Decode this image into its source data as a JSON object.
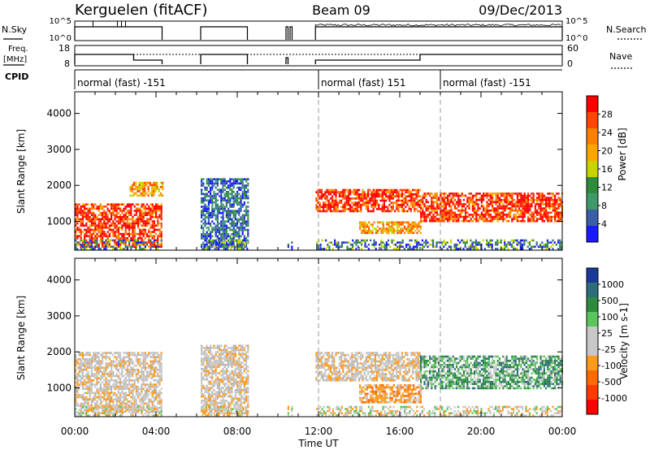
{
  "header": {
    "station": "Kerguelen (fitACF)",
    "beam": "Beam 09",
    "date": "09/Dec/2013"
  },
  "status": {
    "nsky_label": "N.Sky",
    "nsearch_label": "N.Search",
    "freq_label_1": "Freq.",
    "freq_label_2": "[MHz]",
    "nave_label": "Nave",
    "cpid_label": "CPID",
    "left_ticks": [
      "10^5",
      "10^0"
    ],
    "right_ticks": [
      "10^5",
      "10^0"
    ],
    "freq_ticks": [
      "18",
      "8"
    ],
    "nave_ticks": [
      "60",
      "0"
    ],
    "cpid_segments": [
      {
        "label": "normal (fast) -151",
        "start": 0,
        "end": 12
      },
      {
        "label": "normal (fast) 151",
        "start": 12,
        "end": 18
      },
      {
        "label": "normal (fast) -151",
        "start": 18,
        "end": 24
      }
    ],
    "data_windows": [
      [
        0,
        4.3
      ],
      [
        6.2,
        8.5
      ],
      [
        10.4,
        10.5
      ],
      [
        10.6,
        10.7
      ],
      [
        11.85,
        24
      ]
    ]
  },
  "panels": {
    "power": {
      "ylabel": "Slant Range [km]",
      "cbar_title": "Power [dB]",
      "cbar_ticks": [
        "28",
        "24",
        "20",
        "16",
        "12",
        "8",
        "4"
      ],
      "cbar_colors": [
        "#ff0000",
        "#ff4500",
        "#ff8000",
        "#ffa500",
        "#c8d400",
        "#2e8b3e",
        "#3f9a6a",
        "#3a5fa8",
        "#1a1aff"
      ]
    },
    "velocity": {
      "ylabel": "Slant Range [km]",
      "cbar_title": "Velocity [m s-1]",
      "cbar_ticks": [
        "1000",
        "500",
        "100",
        "25",
        "-25",
        "-100",
        "-500",
        "-1000"
      ],
      "cbar_colors": [
        "#1a3a9a",
        "#2e6e7a",
        "#2e8b3e",
        "#5cc45c",
        "#c8c8c8",
        "#c8c8c8",
        "#ff9a1a",
        "#ff6a00",
        "#ff3a00",
        "#ff0000"
      ]
    }
  },
  "xaxis": {
    "label": "Time UT",
    "ticks": [
      "00:00",
      "04:00",
      "08:00",
      "12:00",
      "16:00",
      "20:00",
      "00:00"
    ]
  },
  "chart_data": [
    {
      "type": "heatmap",
      "title": "Kerguelen (fitACF) Beam 09 09/Dec/2013 — Power",
      "xlabel": "Time UT",
      "ylabel": "Slant Range [km]",
      "xlim": [
        0,
        24
      ],
      "ylim": [
        200,
        4600
      ],
      "yticks": [
        1000,
        2000,
        3000,
        4000
      ],
      "colorbar": {
        "label": "Power [dB]",
        "ticks": [
          4,
          8,
          12,
          16,
          20,
          24,
          28
        ]
      },
      "echo_regions": [
        {
          "t0": 0,
          "t1": 4.3,
          "r0": 300,
          "r1": 1500,
          "power": 26
        },
        {
          "t0": 2.7,
          "t1": 4.3,
          "r0": 1700,
          "r1": 2100,
          "power": 18
        },
        {
          "t0": 6.2,
          "t1": 8.5,
          "r0": 300,
          "r1": 2200,
          "power": 8
        },
        {
          "t0": 11.85,
          "t1": 17,
          "r0": 1300,
          "r1": 1900,
          "power": 28
        },
        {
          "t0": 14,
          "t1": 17,
          "r0": 700,
          "r1": 1000,
          "power": 24
        },
        {
          "t0": 17,
          "t1": 24,
          "r0": 1000,
          "r1": 1800,
          "power": 26
        }
      ]
    },
    {
      "type": "heatmap",
      "title": "Kerguelen (fitACF) Beam 09 09/Dec/2013 — Velocity",
      "xlabel": "Time UT",
      "ylabel": "Slant Range [km]",
      "xlim": [
        0,
        24
      ],
      "ylim": [
        200,
        4600
      ],
      "yticks": [
        1000,
        2000,
        3000,
        4000
      ],
      "colorbar": {
        "label": "Velocity [m s-1]",
        "ticks": [
          -1000,
          -500,
          -100,
          -25,
          25,
          100,
          500,
          1000
        ]
      },
      "echo_regions": [
        {
          "t0": 0,
          "t1": 4.3,
          "r0": 300,
          "r1": 2000,
          "velocity": 0
        },
        {
          "t0": 6.2,
          "t1": 8.5,
          "r0": 300,
          "r1": 2200,
          "velocity": 0
        },
        {
          "t0": 11.85,
          "t1": 17,
          "r0": 1200,
          "r1": 2000,
          "velocity": 0
        },
        {
          "t0": 14,
          "t1": 17,
          "r0": 600,
          "r1": 1100,
          "velocity": -300
        },
        {
          "t0": 17,
          "t1": 24,
          "r0": 1000,
          "r1": 1900,
          "velocity": 200
        }
      ]
    }
  ]
}
